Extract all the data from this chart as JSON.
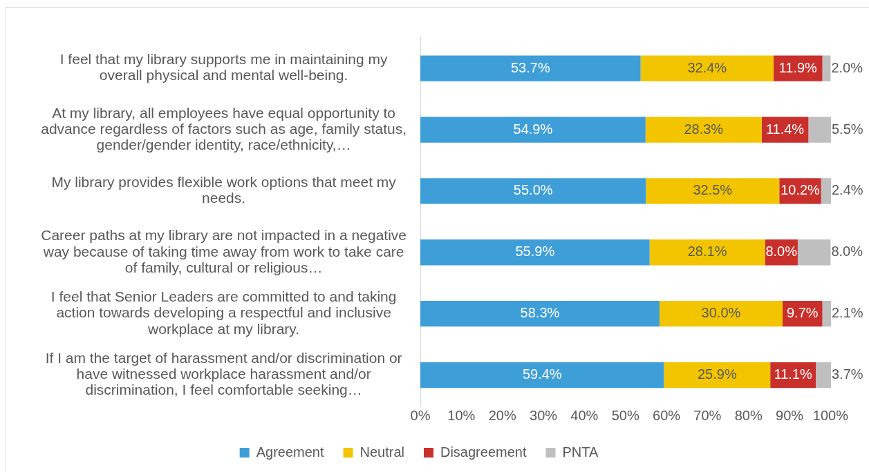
{
  "chart_data": {
    "type": "bar",
    "orientation": "horizontal",
    "stacked": true,
    "categories": [
      "I feel that my library supports me in maintaining my overall physical and mental well-being.",
      "At my library, all employees have equal opportunity to advance regardless of factors such as age, family status, gender/gender identity, race/ethnicity,…",
      "My library provides flexible work options that meet my needs.",
      "Career paths at my library are not impacted in a negative way because of taking time away from work to take care of family, cultural or religious…",
      "I feel that Senior Leaders are committed to and taking action towards developing a respectful and inclusive workplace at my library.",
      "If I am the target of harassment and/or discrimination or have witnessed workplace harassment and/or discrimination, I feel comfortable seeking…"
    ],
    "series": [
      {
        "name": "Agreement",
        "color": "#3e9fd8",
        "values": [
          53.7,
          54.9,
          55.0,
          55.9,
          58.3,
          59.4
        ],
        "value_labels": [
          "53.7%",
          "54.9%",
          "55.0%",
          "55.9%",
          "58.3%",
          "59.4%"
        ]
      },
      {
        "name": "Neutral",
        "color": "#f2c500",
        "values": [
          32.4,
          28.3,
          32.5,
          28.1,
          30.0,
          25.9
        ],
        "value_labels": [
          "32.4%",
          "28.3%",
          "32.5%",
          "28.1%",
          "30.0%",
          "25.9%"
        ]
      },
      {
        "name": "Disagreement",
        "color": "#c9302c",
        "values": [
          11.9,
          11.4,
          10.2,
          8.0,
          9.7,
          11.1
        ],
        "value_labels": [
          "11.9%",
          "11.4%",
          "10.2%",
          "8.0%",
          "9.7%",
          "11.1%"
        ]
      },
      {
        "name": "PNTA",
        "color": "#bfbfbf",
        "values": [
          2.0,
          5.5,
          2.4,
          8.0,
          2.1,
          3.7
        ],
        "value_labels": [
          "2.0%",
          "5.5%",
          "2.4%",
          "8.0%",
          "2.1%",
          "3.7%"
        ]
      }
    ],
    "xlim": [
      0,
      100.1
    ],
    "xticks": [
      {
        "value": 0,
        "label": "0%"
      },
      {
        "value": 10,
        "label": "10%"
      },
      {
        "value": 20,
        "label": "20%"
      },
      {
        "value": 30,
        "label": "30%"
      },
      {
        "value": 40,
        "label": "40%"
      },
      {
        "value": 50,
        "label": "50%"
      },
      {
        "value": 60,
        "label": "60%"
      },
      {
        "value": 70,
        "label": "70%"
      },
      {
        "value": 80,
        "label": "80%"
      },
      {
        "value": 90,
        "label": "90%"
      },
      {
        "value": 100,
        "label": "100%"
      }
    ],
    "grid": false,
    "legend": "bottom"
  }
}
